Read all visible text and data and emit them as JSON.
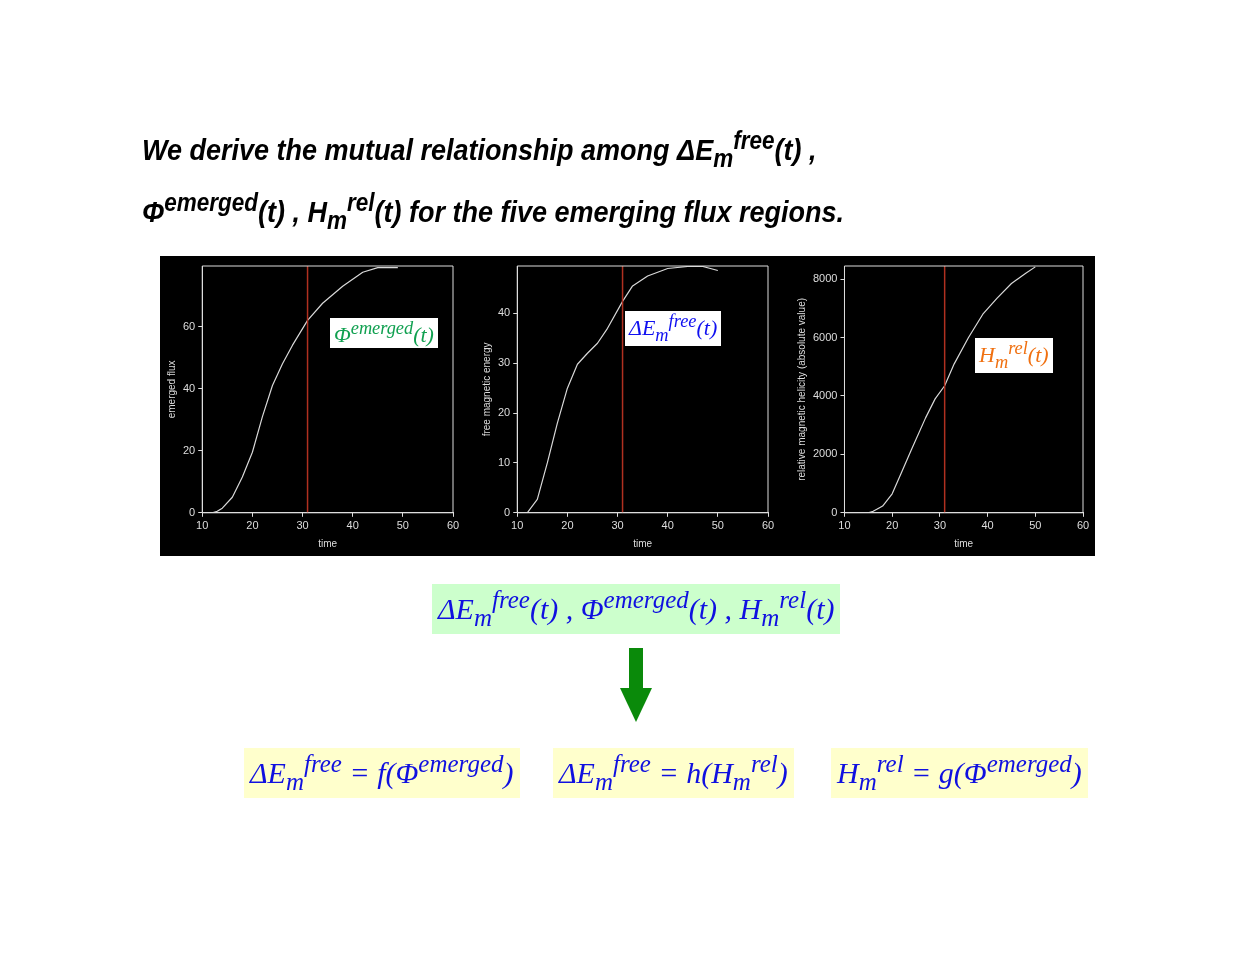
{
  "chart_data": [
    {
      "type": "line",
      "xlabel": "time",
      "ylabel": "emerged flux",
      "xlim": [
        10,
        60
      ],
      "xticks": [
        10,
        20,
        30,
        40,
        50,
        60
      ],
      "ylim": [
        0,
        79.5
      ],
      "yticks": [
        0,
        20,
        40,
        60
      ],
      "grid": false,
      "legend": false,
      "annotations": [
        "Φ$^{emerged}$(t)"
      ],
      "ref_lines": [
        {
          "axis": "x",
          "value": 31,
          "color": "#b03020"
        }
      ],
      "series": [
        {
          "color": "#d8d8d8",
          "x": [
            12,
            13,
            14,
            16,
            18,
            20,
            22,
            24,
            26,
            28,
            31,
            34,
            38,
            42,
            45,
            49
          ],
          "values": [
            0,
            0.5,
            1.5,
            5,
            11.5,
            19.5,
            31,
            41,
            48,
            54,
            62,
            67.5,
            73,
            77.5,
            79,
            79
          ]
        }
      ]
    },
    {
      "type": "line",
      "xlabel": "time",
      "ylabel": "free magnetic energy",
      "xlim": [
        10,
        60
      ],
      "xticks": [
        10,
        20,
        30,
        40,
        50,
        60
      ],
      "ylim": [
        0,
        49.5
      ],
      "yticks": [
        0,
        10,
        20,
        30,
        40
      ],
      "grid": false,
      "legend": false,
      "annotations": [
        "ΔE$_{m}$$^{free}$(t)"
      ],
      "ref_lines": [
        {
          "axis": "x",
          "value": 31,
          "color": "#b03020"
        }
      ],
      "series": [
        {
          "color": "#d8d8d8",
          "x": [
            12,
            14,
            16,
            18,
            20,
            22,
            24,
            26,
            28,
            31,
            33,
            36,
            40,
            44,
            47,
            50
          ],
          "values": [
            0,
            2.7,
            10,
            18,
            25,
            29.8,
            32,
            34,
            37,
            42.4,
            45.5,
            47.5,
            49,
            49.4,
            49.4,
            48.6
          ]
        }
      ]
    },
    {
      "type": "line",
      "xlabel": "time",
      "ylabel": "relative magnetic helicity (absolute value)",
      "xlim": [
        10,
        60
      ],
      "xticks": [
        10,
        20,
        30,
        40,
        50,
        60
      ],
      "ylim": [
        0,
        8450
      ],
      "yticks": [
        0,
        2000,
        4000,
        6000,
        8000
      ],
      "grid": false,
      "legend": false,
      "annotations": [
        "H$_{m}$$^{rel}$(t)"
      ],
      "ref_lines": [
        {
          "axis": "x",
          "value": 31,
          "color": "#b03020"
        }
      ],
      "series": [
        {
          "color": "#d8d8d8",
          "x": [
            14,
            15,
            16,
            18,
            20,
            22,
            24,
            27,
            29,
            31,
            33,
            36,
            39,
            42,
            45,
            48,
            50
          ],
          "values": [
            0,
            0,
            50,
            230,
            650,
            1400,
            2150,
            3250,
            3900,
            4350,
            5100,
            6000,
            6800,
            7350,
            7850,
            8200,
            8420
          ]
        }
      ]
    },
    {
      "type": "other",
      "title": "We derive the mutual relationship among ΔE$_{m}$$^{free}$(t) , Φ$^{emerged}$(t) , H$_{m}$$^{rel}$(t) for the five emerging flux regions.",
      "annotations": [
        "ΔE$_{m}$$^{free}$(t) , Φ$^{emerged}$(t) , H$_{m}$$^{rel}$(t)",
        "ΔE$_{m}$$^{free}$ = f(Φ$^{emerged}$)",
        "ΔE$_{m}$$^{free}$ = h(H$_{m}$$^{rel}$)",
        "H$_{m}$$^{rel}$ = g(Φ$^{emerged}$)"
      ]
    }
  ]
}
